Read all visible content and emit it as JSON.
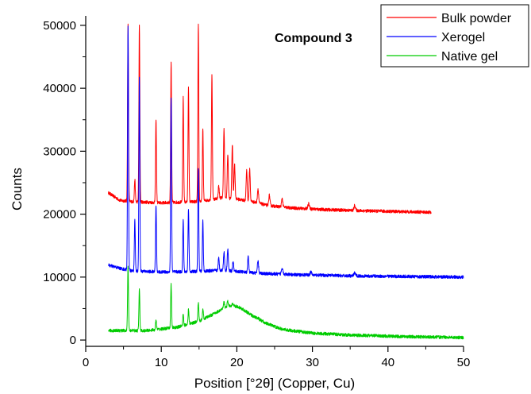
{
  "chart_data": {
    "type": "line",
    "title": "Compound 3",
    "xlabel": "Position [°2θ] (Copper, Cu)",
    "ylabel": "Counts",
    "xlim": [
      0,
      50
    ],
    "ylim": [
      -1000,
      51500
    ],
    "xticks": [
      0,
      10,
      20,
      30,
      40,
      50
    ],
    "yticks": [
      0,
      10000,
      20000,
      30000,
      40000,
      50000
    ],
    "grid": false,
    "legend_position": "top-right, outside plot",
    "series": [
      {
        "name": "Bulk powder",
        "color": "#ff0000",
        "baseline": [
          [
            3.0,
            23400
          ],
          [
            4.5,
            22200
          ],
          [
            6.0,
            22000
          ],
          [
            10.0,
            21800
          ],
          [
            15.0,
            22000
          ],
          [
            18.0,
            22600
          ],
          [
            20.0,
            22400
          ],
          [
            22.0,
            22000
          ],
          [
            24.0,
            21400
          ],
          [
            27.0,
            21000
          ],
          [
            32.0,
            20700
          ],
          [
            38.0,
            20500
          ],
          [
            45.7,
            20300
          ]
        ],
        "peaks": [
          [
            5.6,
            50000,
            0.06
          ],
          [
            6.5,
            25500,
            0.06
          ],
          [
            7.1,
            50000,
            0.06
          ],
          [
            9.3,
            35000,
            0.06
          ],
          [
            11.3,
            44200,
            0.06
          ],
          [
            12.9,
            38500,
            0.06
          ],
          [
            13.6,
            40000,
            0.06
          ],
          [
            14.9,
            50000,
            0.06
          ],
          [
            15.5,
            33500,
            0.06
          ],
          [
            16.7,
            42000,
            0.06
          ],
          [
            17.6,
            24500,
            0.07
          ],
          [
            18.3,
            33500,
            0.07
          ],
          [
            18.8,
            29500,
            0.07
          ],
          [
            19.4,
            31000,
            0.07
          ],
          [
            19.7,
            28000,
            0.07
          ],
          [
            21.3,
            27000,
            0.07
          ],
          [
            21.7,
            27200,
            0.07
          ],
          [
            22.8,
            24000,
            0.08
          ],
          [
            24.3,
            23000,
            0.08
          ],
          [
            26.0,
            22500,
            0.08
          ],
          [
            29.5,
            21700,
            0.1
          ],
          [
            35.6,
            21400,
            0.1
          ]
        ]
      },
      {
        "name": "Xerogel",
        "color": "#0000ff",
        "baseline": [
          [
            3.0,
            11900
          ],
          [
            4.5,
            11400
          ],
          [
            6.0,
            11000
          ],
          [
            10.0,
            10800
          ],
          [
            15.0,
            10900
          ],
          [
            18.0,
            11100
          ],
          [
            20.0,
            10900
          ],
          [
            23.0,
            10600
          ],
          [
            27.0,
            10400
          ],
          [
            35.0,
            10200
          ],
          [
            50.0,
            10000
          ]
        ],
        "peaks": [
          [
            5.6,
            50000,
            0.06
          ],
          [
            6.5,
            19000,
            0.06
          ],
          [
            7.1,
            42000,
            0.06
          ],
          [
            9.3,
            21500,
            0.06
          ],
          [
            11.3,
            38500,
            0.06
          ],
          [
            12.9,
            19000,
            0.06
          ],
          [
            13.6,
            21000,
            0.06
          ],
          [
            14.9,
            27500,
            0.06
          ],
          [
            15.5,
            19000,
            0.06
          ],
          [
            17.6,
            13000,
            0.07
          ],
          [
            18.3,
            14000,
            0.07
          ],
          [
            18.8,
            14500,
            0.07
          ],
          [
            19.5,
            12500,
            0.07
          ],
          [
            21.5,
            13300,
            0.07
          ],
          [
            22.8,
            12500,
            0.08
          ],
          [
            26.0,
            11500,
            0.1
          ],
          [
            29.8,
            10800,
            0.1
          ],
          [
            35.6,
            10700,
            0.1
          ]
        ]
      },
      {
        "name": "Native gel",
        "color": "#00cc00",
        "baseline": [
          [
            3.0,
            1500
          ],
          [
            5.0,
            1500
          ],
          [
            8.0,
            1500
          ],
          [
            12.0,
            2000
          ],
          [
            15.0,
            3000
          ],
          [
            17.0,
            4200
          ],
          [
            18.5,
            5200
          ],
          [
            19.5,
            5500
          ],
          [
            20.5,
            5100
          ],
          [
            22.0,
            3900
          ],
          [
            24.0,
            2600
          ],
          [
            26.0,
            1700
          ],
          [
            30.0,
            1100
          ],
          [
            35.0,
            800
          ],
          [
            42.0,
            550
          ],
          [
            50.0,
            400
          ]
        ],
        "peaks": [
          [
            5.6,
            11800,
            0.06
          ],
          [
            7.1,
            8000,
            0.06
          ],
          [
            9.3,
            3200,
            0.06
          ],
          [
            11.3,
            8800,
            0.06
          ],
          [
            12.9,
            4100,
            0.06
          ],
          [
            13.6,
            4800,
            0.06
          ],
          [
            14.9,
            6000,
            0.06
          ],
          [
            15.5,
            5000,
            0.06
          ],
          [
            18.3,
            6000,
            0.07
          ],
          [
            18.8,
            6200,
            0.07
          ],
          [
            19.4,
            5800,
            0.07
          ],
          [
            22.8,
            3500,
            0.08
          ]
        ]
      }
    ]
  }
}
